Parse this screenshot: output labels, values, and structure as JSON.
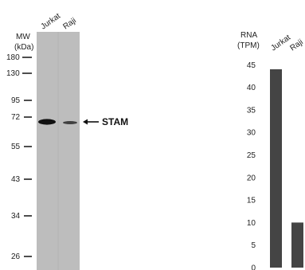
{
  "western_blot": {
    "lanes": [
      "Jurkat",
      "Raji"
    ],
    "mw_label": "MW",
    "mw_unit": "(kDa)",
    "mw_markers": [
      "180",
      "130",
      "95",
      "72",
      "55",
      "43",
      "34",
      "26"
    ],
    "target_label": "STAM",
    "bands": [
      {
        "lane": "Jurkat",
        "intensity": 1.0
      },
      {
        "lane": "Raji",
        "intensity": 0.55
      }
    ],
    "colors": {
      "membrane": "#bdbdbd",
      "band": "#111111"
    }
  },
  "chart_data": {
    "type": "bar",
    "categories": [
      "Jurkat",
      "Raji"
    ],
    "values": [
      44,
      10
    ],
    "ylabel_line1": "RNA",
    "ylabel_line2": "(TPM)",
    "yticks": [
      "45",
      "40",
      "35",
      "30",
      "25",
      "20",
      "15",
      "10",
      "5",
      "0"
    ],
    "ylim": [
      0,
      47
    ],
    "grid": false,
    "colors": {
      "bar": "#444444"
    }
  }
}
